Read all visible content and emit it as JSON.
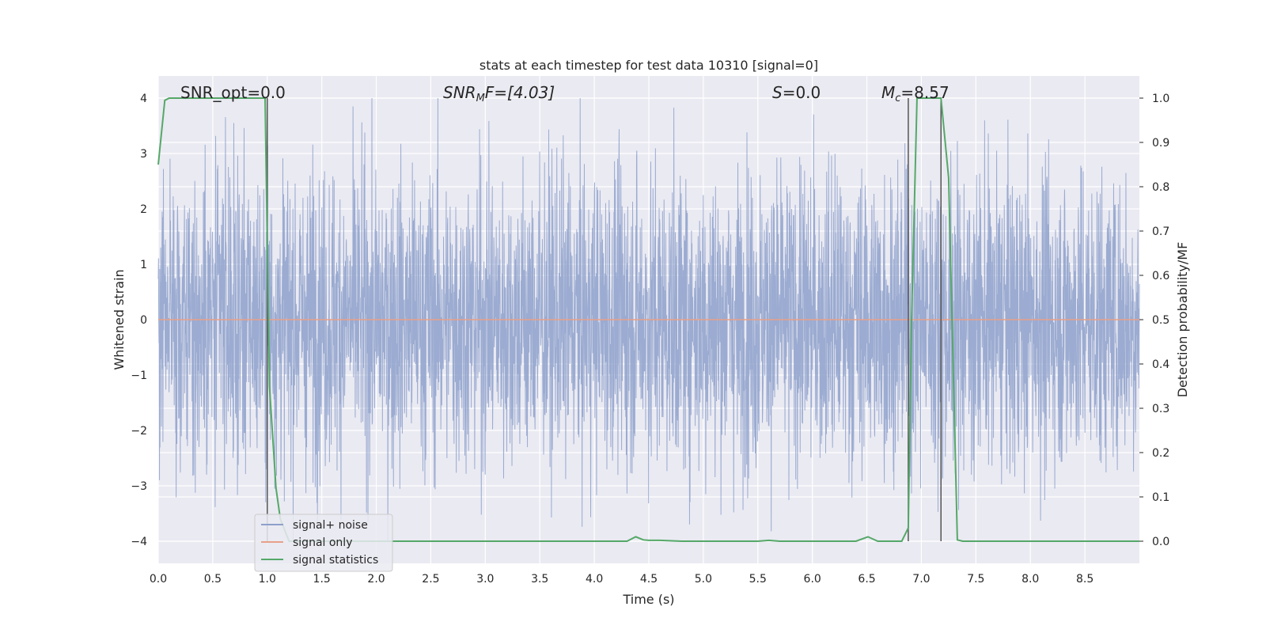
{
  "chart_data": {
    "type": "line",
    "title": "stats at each timestep for test data 10310 [signal=0]",
    "xlabel": "Time (s)",
    "ylabel": "Whitened strain",
    "y2label": "Detection probability/MF",
    "xlim": [
      0.0,
      9.0
    ],
    "ylim": [
      -4.4,
      4.4
    ],
    "y2lim": [
      -0.05,
      1.05
    ],
    "xticks": [
      "0.0",
      "0.5",
      "1.0",
      "1.5",
      "2.0",
      "2.5",
      "3.0",
      "3.5",
      "4.0",
      "4.5",
      "5.0",
      "5.5",
      "6.0",
      "6.5",
      "7.0",
      "7.5",
      "8.0",
      "8.5"
    ],
    "yticks": [
      "4",
      "3",
      "2",
      "1",
      "0",
      "−1",
      "−2",
      "−3",
      "−4"
    ],
    "y2ticks": [
      "1.0",
      "0.9",
      "0.8",
      "0.7",
      "0.6",
      "0.5",
      "0.4",
      "0.3",
      "0.2",
      "0.1",
      "0.0"
    ],
    "grid": true,
    "legend_position": "lower-left",
    "annotations": {
      "snr_opt": "SNR_opt=0.0",
      "snr_mf_base": "SNR",
      "snr_mf_sub": "M",
      "snr_mf_rest": "F=[4.03]",
      "s_var": "S",
      "s_rest": "=0.0",
      "mc_base": "M",
      "mc_sub": "c",
      "mc_rest": "=8.57"
    },
    "vertical_lines_x": [
      1.0,
      6.88,
      7.18
    ],
    "series": [
      {
        "name": "signal+ noise",
        "color": "#8da0cb",
        "kind": "noise",
        "sigma": 1.0,
        "ymax_range": [
          -4.0,
          4.0
        ]
      },
      {
        "name": "signal only",
        "color": "#e8a088",
        "x": [
          0.0,
          9.0
        ],
        "y": [
          0.0,
          0.0
        ]
      },
      {
        "name": "signal statistics",
        "color": "#55a868",
        "axis": "right",
        "x": [
          0.0,
          0.06,
          0.1,
          0.2,
          0.5,
          0.8,
          0.98,
          1.02,
          1.08,
          1.12,
          1.2,
          1.5,
          2.0,
          3.0,
          4.0,
          4.3,
          4.38,
          4.45,
          4.5,
          4.6,
          4.8,
          5.0,
          5.5,
          5.6,
          5.7,
          6.0,
          6.4,
          6.51,
          6.6,
          6.7,
          6.82,
          6.88,
          6.91,
          6.96,
          7.0,
          7.1,
          7.18,
          7.25,
          7.33,
          7.38,
          7.5,
          8.0,
          9.0
        ],
        "y": [
          0.85,
          0.995,
          1.0,
          1.0,
          1.0,
          1.0,
          1.0,
          0.35,
          0.12,
          0.05,
          0.0,
          0.0,
          0.0,
          0.0,
          0.0,
          0.0,
          0.01,
          0.003,
          0.002,
          0.002,
          0.0,
          0.0,
          0.0,
          0.002,
          0.0,
          0.0,
          0.0,
          0.01,
          0.0,
          0.0,
          0.0,
          0.03,
          0.5,
          1.0,
          1.0,
          1.0,
          1.0,
          0.82,
          0.003,
          0.0,
          0.0,
          0.0,
          0.0
        ]
      }
    ]
  }
}
